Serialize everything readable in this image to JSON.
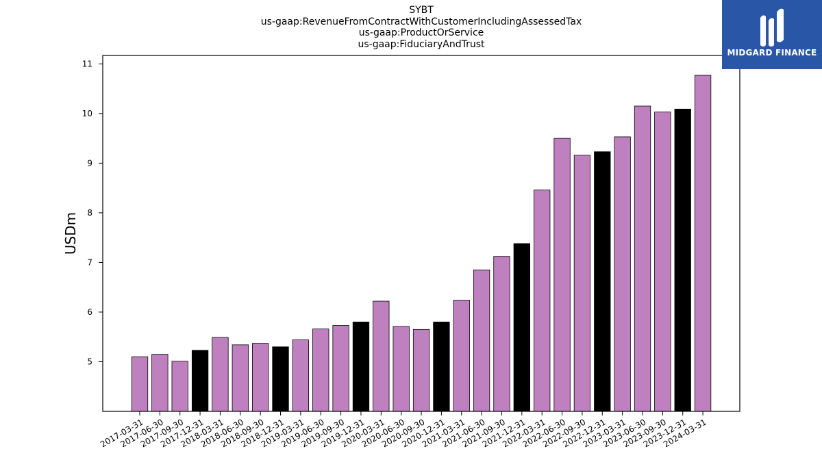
{
  "title_lines": [
    "SYBT",
    "us-gaap:RevenueFromContractWithCustomerIncludingAssessedTax",
    "us-gaap:ProductOrService",
    "us-gaap:FiduciaryAndTrust"
  ],
  "logo": {
    "text": "MIDGARD FINANCE",
    "background": "#2a56a8"
  },
  "colors": {
    "regular": "#bf80bf",
    "year_end": "#000000"
  },
  "chart_data": {
    "type": "bar",
    "title": "SYBT us-gaap:RevenueFromContractWithCustomerIncludingAssessedTax us-gaap:ProductOrService us-gaap:FiduciaryAndTrust",
    "xlabel": "",
    "ylabel": "USDm",
    "ylim": [
      4,
      11.17
    ],
    "yticks": [
      5,
      6,
      7,
      8,
      9,
      10,
      11
    ],
    "grid": false,
    "categories": [
      "2017-03-31",
      "2017-06-30",
      "2017-09-30",
      "2017-12-31",
      "2018-03-31",
      "2018-06-30",
      "2018-09-30",
      "2018-12-31",
      "2019-03-31",
      "2019-06-30",
      "2019-09-30",
      "2019-12-31",
      "2020-03-31",
      "2020-06-30",
      "2020-09-30",
      "2020-12-31",
      "2021-03-31",
      "2021-06-30",
      "2021-09-30",
      "2021-12-31",
      "2022-03-31",
      "2022-06-30",
      "2022-09-30",
      "2022-12-31",
      "2023-03-31",
      "2023-06-30",
      "2023-09-30",
      "2023-12-31",
      "2024-03-31"
    ],
    "values": [
      5.1,
      5.15,
      5.01,
      5.23,
      5.49,
      5.34,
      5.37,
      5.3,
      5.44,
      5.66,
      5.73,
      5.8,
      6.22,
      5.71,
      5.65,
      5.8,
      6.24,
      6.85,
      7.12,
      7.38,
      8.46,
      9.5,
      9.16,
      9.23,
      9.53,
      10.15,
      10.03,
      10.09,
      10.77
    ],
    "highlight": [
      false,
      false,
      false,
      true,
      false,
      false,
      false,
      true,
      false,
      false,
      false,
      true,
      false,
      false,
      false,
      true,
      false,
      false,
      false,
      true,
      false,
      false,
      false,
      true,
      false,
      false,
      false,
      true,
      false
    ]
  }
}
